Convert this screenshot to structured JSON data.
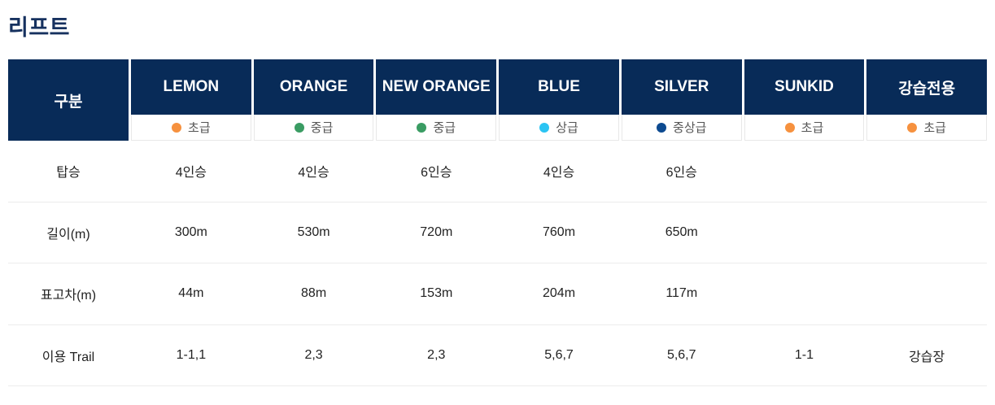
{
  "page": {
    "title": "리프트"
  },
  "colors": {
    "header_navy": "#082b58",
    "beginner_orange": "#f6913e",
    "intermediate_green": "#3a9c63",
    "advanced_cyan": "#2bc4f3",
    "upper_intermediate_navy": "#0d4a90"
  },
  "table": {
    "corner_label": "구분",
    "columns": [
      {
        "name": "LEMON",
        "level": "초급",
        "level_color": "#f6913e"
      },
      {
        "name": "ORANGE",
        "level": "중급",
        "level_color": "#3a9c63"
      },
      {
        "name": "NEW ORANGE",
        "level": "중급",
        "level_color": "#3a9c63"
      },
      {
        "name": "BLUE",
        "level": "상급",
        "level_color": "#2bc4f3"
      },
      {
        "name": "SILVER",
        "level": "중상급",
        "level_color": "#0d4a90"
      },
      {
        "name": "SUNKID",
        "level": "초급",
        "level_color": "#f6913e"
      },
      {
        "name": "강습전용",
        "level": "초급",
        "level_color": "#f6913e"
      }
    ],
    "rows": [
      {
        "label": "탑승",
        "values": [
          "4인승",
          "4인승",
          "6인승",
          "4인승",
          "6인승",
          "",
          ""
        ]
      },
      {
        "label": "길이(m)",
        "values": [
          "300m",
          "530m",
          "720m",
          "760m",
          "650m",
          "",
          ""
        ]
      },
      {
        "label": "표고차(m)",
        "values": [
          "44m",
          "88m",
          "153m",
          "204m",
          "117m",
          "",
          ""
        ]
      },
      {
        "label": "이용 Trail",
        "values": [
          "1-1,1",
          "2,3",
          "2,3",
          "5,6,7",
          "5,6,7",
          "1-1",
          "강습장"
        ]
      }
    ]
  }
}
